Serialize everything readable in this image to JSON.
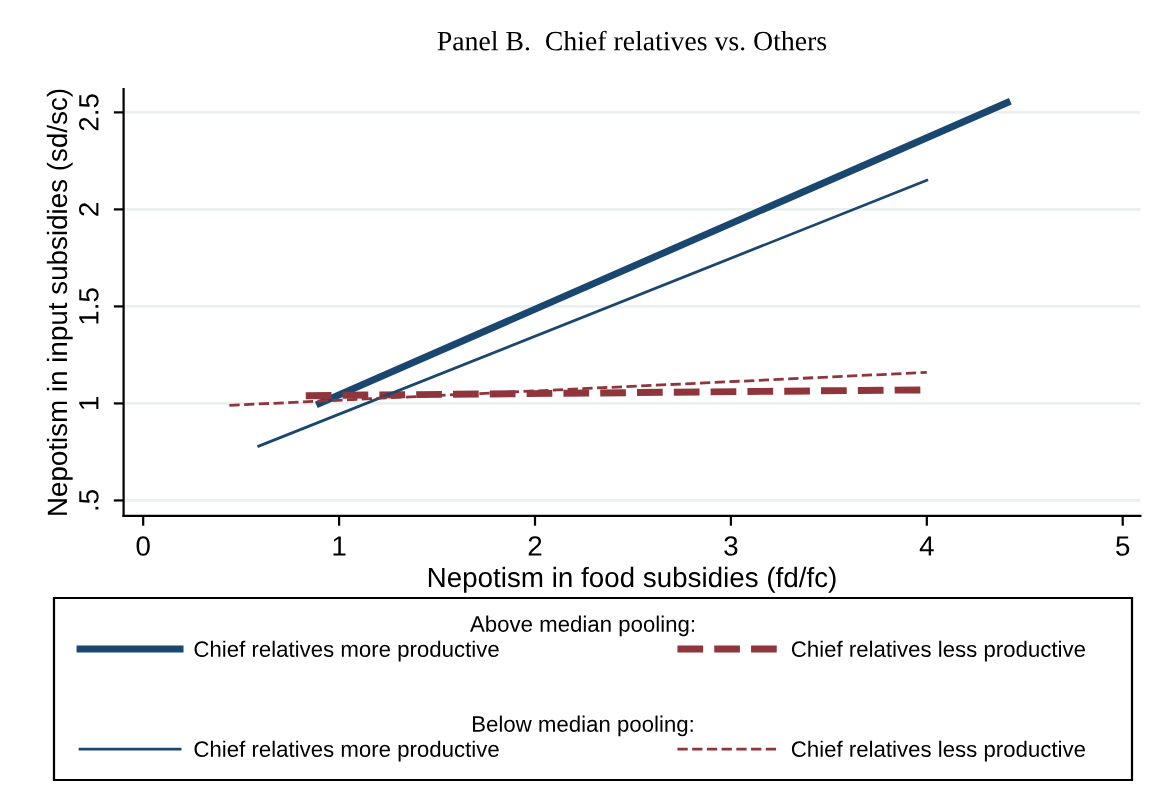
{
  "chart_data": {
    "type": "line",
    "title": "Panel B.  Chief relatives vs. Others",
    "xlabel": "Nepotism in food subsidies (fd/fc)",
    "ylabel": "Nepotism in input subsidies (sd/sc)",
    "annotations": [
      "Above median pooling:",
      "Below median pooling:"
    ],
    "series": [
      {
        "name": "Chief relatives more productive",
        "color": "#1a476f",
        "x": [
          0.9,
          4.41
        ],
        "values": [
          1.0,
          2.55
        ],
        "line_style": "solid"
      },
      {
        "name": "Chief relatives less productive",
        "color": "#90353b",
        "x": [
          0.83,
          4.0
        ],
        "values": [
          1.04,
          1.07
        ],
        "line_style": "dashed"
      },
      {
        "name": "Chief relatives more productive",
        "color": "#1a476f",
        "x": [
          0.59,
          4.0
        ],
        "values": [
          0.78,
          2.15
        ],
        "line_style": "solid"
      },
      {
        "name": "Chief relatives less productive",
        "color": "#90353b",
        "x": [
          0.44,
          4.0
        ],
        "values": [
          0.99,
          1.16
        ],
        "line_style": "dashed"
      }
    ],
    "xlim": [
      -0.1,
      5.09
    ],
    "ylim": [
      0.42,
      2.62
    ],
    "xticks": [
      0,
      1,
      2,
      3,
      4,
      5
    ],
    "yticks": [
      {
        "value": 0.5,
        "label": ".5"
      },
      1,
      1.5,
      2,
      2.5
    ],
    "grid": "y",
    "legend": "bottom"
  }
}
